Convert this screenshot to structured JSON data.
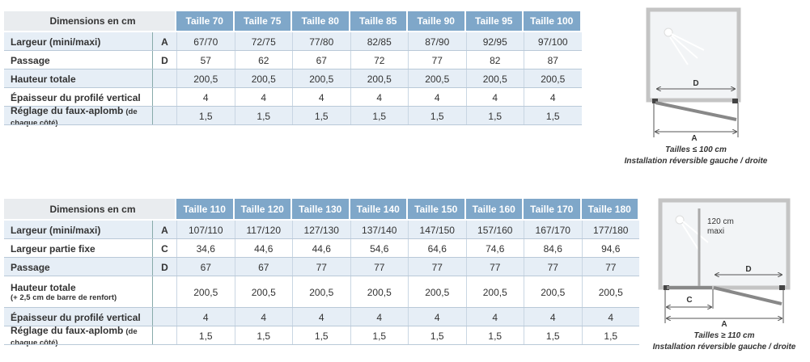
{
  "table1": {
    "header": [
      "Dimensions en cm",
      "Taille 70",
      "Taille 75",
      "Taille 80",
      "Taille 85",
      "Taille 90",
      "Taille 95",
      "Taille 100"
    ],
    "rows": [
      {
        "label": "Largeur (mini/maxi)",
        "letter": "A",
        "cells": [
          "67/70",
          "72/75",
          "77/80",
          "82/85",
          "87/90",
          "92/95",
          "97/100"
        ]
      },
      {
        "label": "Passage",
        "letter": "D",
        "cells": [
          "57",
          "62",
          "67",
          "72",
          "77",
          "82",
          "87"
        ]
      },
      {
        "label": "Hauteur totale",
        "cells": [
          "200,5",
          "200,5",
          "200,5",
          "200,5",
          "200,5",
          "200,5",
          "200,5"
        ]
      },
      {
        "label": "Épaisseur du profilé vertical",
        "cells": [
          "4",
          "4",
          "4",
          "4",
          "4",
          "4",
          "4"
        ]
      },
      {
        "label": "Réglage du faux-aplomb",
        "note": "(de chaque côté)",
        "cells": [
          "1,5",
          "1,5",
          "1,5",
          "1,5",
          "1,5",
          "1,5",
          "1,5"
        ]
      }
    ]
  },
  "diagram1": {
    "labels": [
      "D",
      "A"
    ],
    "caption": [
      "Tailles ≤ 100 cm",
      "Installation réversible gauche / droite"
    ]
  },
  "table2": {
    "header": [
      "Dimensions en cm",
      "Taille 110",
      "Taille 120",
      "Taille 130",
      "Taille 140",
      "Taille 150",
      "Taille 160",
      "Taille 170",
      "Taille 180"
    ],
    "rows": [
      {
        "label": "Largeur (mini/maxi)",
        "letter": "A",
        "cells": [
          "107/110",
          "117/120",
          "127/130",
          "137/140",
          "147/150",
          "157/160",
          "167/170",
          "177/180"
        ]
      },
      {
        "label": "Largeur partie fixe",
        "letter": "C",
        "cells": [
          "34,6",
          "44,6",
          "44,6",
          "54,6",
          "64,6",
          "74,6",
          "84,6",
          "94,6"
        ]
      },
      {
        "label": "Passage",
        "letter": "D",
        "cells": [
          "67",
          "67",
          "77",
          "77",
          "77",
          "77",
          "77",
          "77"
        ]
      },
      {
        "label": "Hauteur totale",
        "note": "(+ 2,5 cm de barre de renfort)",
        "cells": [
          "200,5",
          "200,5",
          "200,5",
          "200,5",
          "200,5",
          "200,5",
          "200,5",
          "200,5"
        ]
      },
      {
        "label": "Épaisseur du profilé vertical",
        "cells": [
          "4",
          "4",
          "4",
          "4",
          "4",
          "4",
          "4",
          "4"
        ]
      },
      {
        "label": "Réglage du faux-aplomb",
        "note": "(de chaque côté)",
        "cells": [
          "1,5",
          "1,5",
          "1,5",
          "1,5",
          "1,5",
          "1,5",
          "1,5",
          "1,5"
        ]
      }
    ]
  },
  "diagram2": {
    "labels": [
      "120 cm",
      "maxi",
      "D",
      "C",
      "A"
    ],
    "caption": [
      "Tailles ≥ 110 cm",
      "Installation réversible gauche / droite"
    ]
  }
}
